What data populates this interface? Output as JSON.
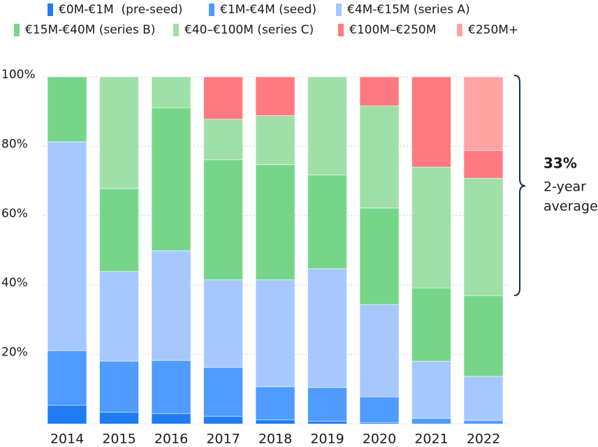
{
  "chart_data": {
    "type": "stacked_bar",
    "categories": [
      "2014",
      "2015",
      "2016",
      "2017",
      "2018",
      "2019",
      "2020",
      "2021",
      "2022"
    ],
    "series": [
      {
        "name": "€0M-€1M  (pre-seed)",
        "color": "#1f7cf2",
        "values": [
          5.4,
          3.4,
          3,
          2.2,
          1.2,
          0.8,
          0.4,
          0,
          0
        ]
      },
      {
        "name": "€1M-€4M (seed)",
        "color": "#4f9bff",
        "values": [
          15.7,
          14.7,
          15.3,
          14.1,
          9.5,
          9.7,
          7.4,
          1.6,
          1
        ]
      },
      {
        "name": "€4M-€15M (series A)",
        "color": "#a6c8ff",
        "values": [
          60.2,
          25.8,
          31.6,
          25.2,
          30.8,
          34.2,
          26.6,
          16.5,
          12.7
        ]
      },
      {
        "name": "€15M-€40M (series B)",
        "color": "#75d68a",
        "values": [
          18.7,
          23.9,
          41.2,
          34.6,
          33.2,
          27,
          27.8,
          21.1,
          23.3
        ]
      },
      {
        "name": "€40–€100M (series C)",
        "color": "#9ee0a8",
        "values": [
          0,
          32.2,
          8.9,
          11.7,
          14.1,
          28.3,
          29.4,
          34.8,
          33.8
        ]
      },
      {
        "name": "€100M–€250M",
        "color": "#ff7a80",
        "values": [
          0,
          0,
          0,
          12.2,
          11.2,
          0,
          8.4,
          26,
          8
        ]
      },
      {
        "name": "€250M+",
        "color": "#ffa3a3",
        "values": [
          0,
          0,
          0,
          0,
          0,
          0,
          0,
          0,
          21.2
        ]
      }
    ],
    "ylim": [
      0,
      100
    ],
    "yticks": [
      {
        "value": 20,
        "label": "20%"
      },
      {
        "value": 40,
        "label": "40%"
      },
      {
        "value": 60,
        "label": "60%"
      },
      {
        "value": 80,
        "label": "80%"
      },
      {
        "value": 100,
        "label": "100%"
      }
    ],
    "grid": true,
    "annotation": {
      "value": "33%",
      "line1": "2-year",
      "line2": "average"
    }
  }
}
